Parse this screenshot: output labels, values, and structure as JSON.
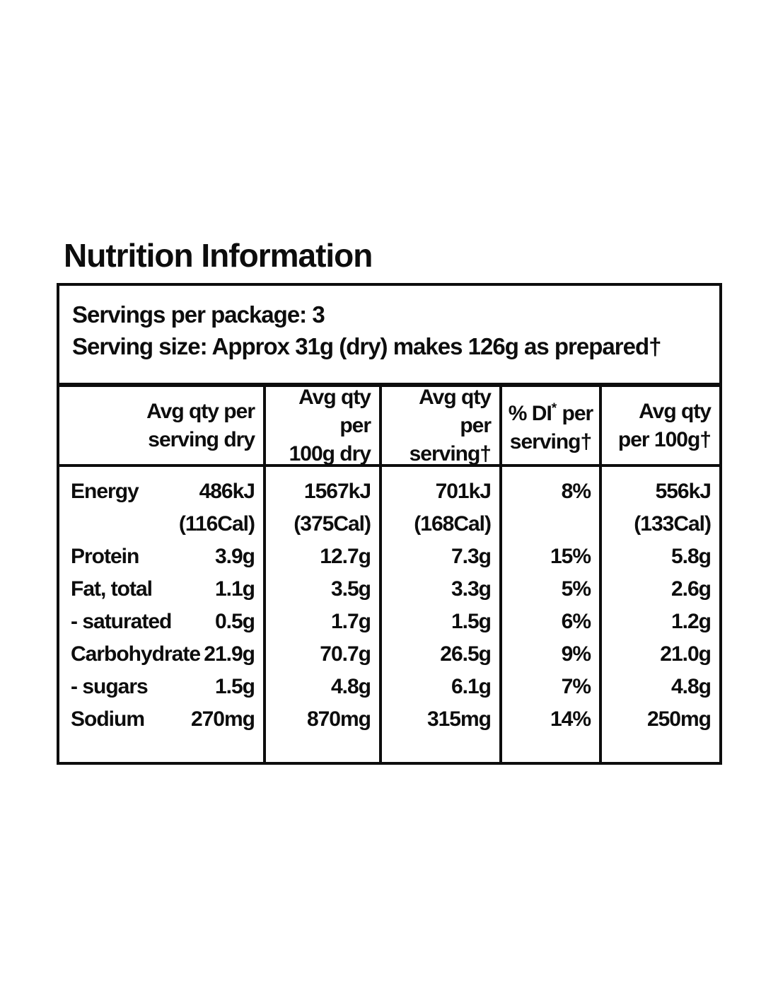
{
  "title": "Nutrition Information",
  "servings": {
    "per_package": "Servings per package: 3",
    "size": "Serving size: Approx 31g (dry) makes 126g as prepared†"
  },
  "columns": {
    "serving_dry": {
      "line1": "Avg qty per",
      "line2": "serving dry"
    },
    "per_100g_dry": {
      "line1": "Avg qty per",
      "line2": "100g dry"
    },
    "per_serving": {
      "line1": "Avg qty",
      "line2": "per serving†"
    },
    "di_per_serving": {
      "pre": "% DI",
      "sup": "*",
      "post": " per",
      "line2": "serving†"
    },
    "per_100g": {
      "line1": "Avg qty",
      "line2": "per 100g†"
    }
  },
  "rows": {
    "energy": {
      "label": "Energy",
      "serving_dry": "486kJ",
      "per_100g_dry": "1567kJ",
      "per_serving": "701kJ",
      "di": "8%",
      "per_100g": "556kJ",
      "cal": {
        "serving_dry": "(116Cal)",
        "per_100g_dry": "(375Cal)",
        "per_serving": "(168Cal)",
        "di": "",
        "per_100g": "(133Cal)"
      }
    },
    "protein": {
      "label": "Protein",
      "serving_dry": "3.9g",
      "per_100g_dry": "12.7g",
      "per_serving": "7.3g",
      "di": "15%",
      "per_100g": "5.8g"
    },
    "fat_total": {
      "label": "Fat, total",
      "serving_dry": "1.1g",
      "per_100g_dry": "3.5g",
      "per_serving": "3.3g",
      "di": "5%",
      "per_100g": "2.6g"
    },
    "saturated": {
      "label": "- saturated",
      "serving_dry": "0.5g",
      "per_100g_dry": "1.7g",
      "per_serving": "1.5g",
      "di": "6%",
      "per_100g": "1.2g"
    },
    "carbohydrate": {
      "label": "Carbohydrate",
      "serving_dry": "21.9g",
      "per_100g_dry": "70.7g",
      "per_serving": "26.5g",
      "di": "9%",
      "per_100g": "21.0g"
    },
    "sugars": {
      "label": "- sugars",
      "serving_dry": "1.5g",
      "per_100g_dry": "4.8g",
      "per_serving": "6.1g",
      "di": "7%",
      "per_100g": "4.8g"
    },
    "sodium": {
      "label": "Sodium",
      "serving_dry": "270mg",
      "per_100g_dry": "870mg",
      "per_serving": "315mg",
      "di": "14%",
      "per_100g": "250mg"
    }
  }
}
